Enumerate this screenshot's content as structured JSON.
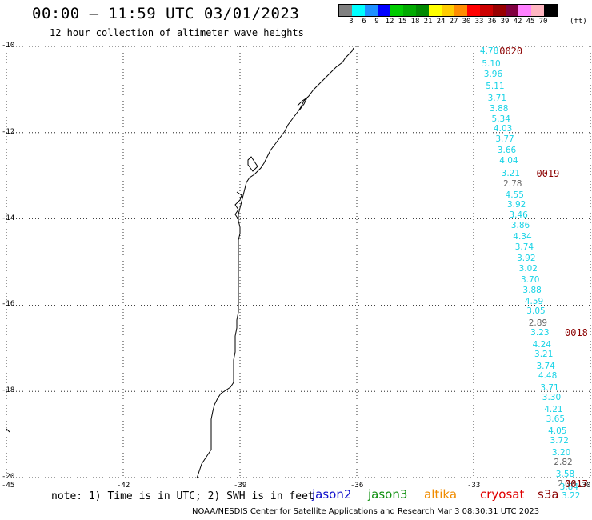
{
  "header": {
    "title": "00:00 – 11:59 UTC 03/01/2023",
    "subtitle": "12 hour collection of altimeter wave heights"
  },
  "legend": {
    "labels": [
      "3",
      "6",
      "9",
      "12",
      "15",
      "18",
      "21",
      "24",
      "27",
      "30",
      "33",
      "36",
      "39",
      "42",
      "45",
      "70"
    ],
    "unit": "(ft)",
    "colors": [
      "#808080",
      "#00ffff",
      "#1e90ff",
      "#0000ff",
      "#00cc00",
      "#00aa00",
      "#008800",
      "#ffff00",
      "#ffcc00",
      "#ff8c00",
      "#ff0000",
      "#cc0000",
      "#990000",
      "#800040",
      "#ff80ff",
      "#ffb6c1",
      "#000000"
    ]
  },
  "map": {
    "lat_labels": [
      "-10",
      "-12",
      "-14",
      "-16",
      "-18",
      "-20"
    ],
    "lon_labels": [
      "-45",
      "-42",
      "-39",
      "-36",
      "-33",
      "-30"
    ],
    "lat_range": [
      -20,
      -10
    ],
    "lon_range": [
      -45,
      -30
    ],
    "grid": "dotted"
  },
  "wave_readings": [
    {
      "v": "4.78",
      "c": "cyan",
      "lon": -32.55,
      "lat": -10.12
    },
    {
      "v": "5.10",
      "c": "cyan",
      "lon": -32.5,
      "lat": -10.4
    },
    {
      "v": "3.96",
      "c": "cyan",
      "lon": -32.45,
      "lat": -10.65
    },
    {
      "v": "5.11",
      "c": "cyan",
      "lon": -32.4,
      "lat": -10.92
    },
    {
      "v": "3.71",
      "c": "cyan",
      "lon": -32.35,
      "lat": -11.2
    },
    {
      "v": "3.88",
      "c": "cyan",
      "lon": -32.3,
      "lat": -11.45
    },
    {
      "v": "5.34",
      "c": "cyan",
      "lon": -32.25,
      "lat": -11.68
    },
    {
      "v": "4.03",
      "c": "cyan",
      "lon": -32.2,
      "lat": -11.92
    },
    {
      "v": "3.77",
      "c": "cyan",
      "lon": -32.15,
      "lat": -12.15
    },
    {
      "v": "3.66",
      "c": "cyan",
      "lon": -32.1,
      "lat": -12.42
    },
    {
      "v": "4.04",
      "c": "cyan",
      "lon": -32.05,
      "lat": -12.65
    },
    {
      "v": "3.21",
      "c": "cyan",
      "lon": -32.0,
      "lat": -12.95
    },
    {
      "v": "2.78",
      "c": "gray",
      "lon": -31.95,
      "lat": -13.2
    },
    {
      "v": "4.55",
      "c": "cyan",
      "lon": -31.9,
      "lat": -13.45
    },
    {
      "v": "3.92",
      "c": "cyan",
      "lon": -31.85,
      "lat": -13.68
    },
    {
      "v": "3.46",
      "c": "cyan",
      "lon": -31.8,
      "lat": -13.92
    },
    {
      "v": "3.86",
      "c": "cyan",
      "lon": -31.75,
      "lat": -14.15
    },
    {
      "v": "4.34",
      "c": "cyan",
      "lon": -31.7,
      "lat": -14.42
    },
    {
      "v": "3.74",
      "c": "cyan",
      "lon": -31.65,
      "lat": -14.65
    },
    {
      "v": "3.92",
      "c": "cyan",
      "lon": -31.6,
      "lat": -14.92
    },
    {
      "v": "3.02",
      "c": "cyan",
      "lon": -31.55,
      "lat": -15.15
    },
    {
      "v": "3.70",
      "c": "cyan",
      "lon": -31.5,
      "lat": -15.42
    },
    {
      "v": "3.88",
      "c": "cyan",
      "lon": -31.45,
      "lat": -15.65
    },
    {
      "v": "4.59",
      "c": "cyan",
      "lon": -31.4,
      "lat": -15.92
    },
    {
      "v": "3.05",
      "c": "cyan",
      "lon": -31.35,
      "lat": -16.15
    },
    {
      "v": "2.89",
      "c": "gray",
      "lon": -31.3,
      "lat": -16.42
    },
    {
      "v": "3.23",
      "c": "cyan",
      "lon": -31.25,
      "lat": -16.65
    },
    {
      "v": "4.24",
      "c": "cyan",
      "lon": -31.2,
      "lat": -16.92
    },
    {
      "v": "3.21",
      "c": "cyan",
      "lon": -31.15,
      "lat": -17.15
    },
    {
      "v": "3.74",
      "c": "cyan",
      "lon": -31.1,
      "lat": -17.42
    },
    {
      "v": "4.48",
      "c": "cyan",
      "lon": -31.05,
      "lat": -17.65
    },
    {
      "v": "3.71",
      "c": "cyan",
      "lon": -31.0,
      "lat": -17.92
    },
    {
      "v": "3.30",
      "c": "cyan",
      "lon": -30.95,
      "lat": -18.15
    },
    {
      "v": "4.21",
      "c": "cyan",
      "lon": -30.9,
      "lat": -18.42
    },
    {
      "v": "3.65",
      "c": "cyan",
      "lon": -30.85,
      "lat": -18.65
    },
    {
      "v": "4.05",
      "c": "cyan",
      "lon": -30.8,
      "lat": -18.92
    },
    {
      "v": "3.72",
      "c": "cyan",
      "lon": -30.75,
      "lat": -19.15
    },
    {
      "v": "3.20",
      "c": "cyan",
      "lon": -30.7,
      "lat": -19.42
    },
    {
      "v": "2.82",
      "c": "gray",
      "lon": -30.65,
      "lat": -19.65
    },
    {
      "v": "3.58",
      "c": "cyan",
      "lon": -30.6,
      "lat": -19.92
    },
    {
      "v": "2.78",
      "c": "gray",
      "lon": -30.55,
      "lat": -20.15
    },
    {
      "v": "3.84",
      "c": "cyan",
      "lon": -30.5,
      "lat": -20.22
    },
    {
      "v": "3.22",
      "c": "cyan",
      "lon": -30.45,
      "lat": -20.42
    }
  ],
  "track_labels": [
    {
      "t": "0020",
      "lon": -32.05,
      "lat": -10.12
    },
    {
      "t": "0019",
      "lon": -31.1,
      "lat": -12.95
    },
    {
      "t": "0018",
      "lon": -30.1,
      "lat": -16.65
    },
    {
      "t": "0017",
      "lon": -29.45,
      "lat": -20.15
    }
  ],
  "footer": {
    "note": "note: 1) Time is in UTC; 2) SWH is in feet",
    "satellites": [
      {
        "name": "jason2",
        "color": "#1010cc"
      },
      {
        "name": "jason3",
        "color": "#109010"
      },
      {
        "name": "altika",
        "color": "#f08c00"
      },
      {
        "name": "cryosat",
        "color": "#e00000"
      },
      {
        "name": "s3a",
        "color": "#8b0000"
      }
    ],
    "credit": "NOAA/NESDIS Center for Satellite Applications and Research    Mar  3 08:30:31 UTC 2023"
  }
}
